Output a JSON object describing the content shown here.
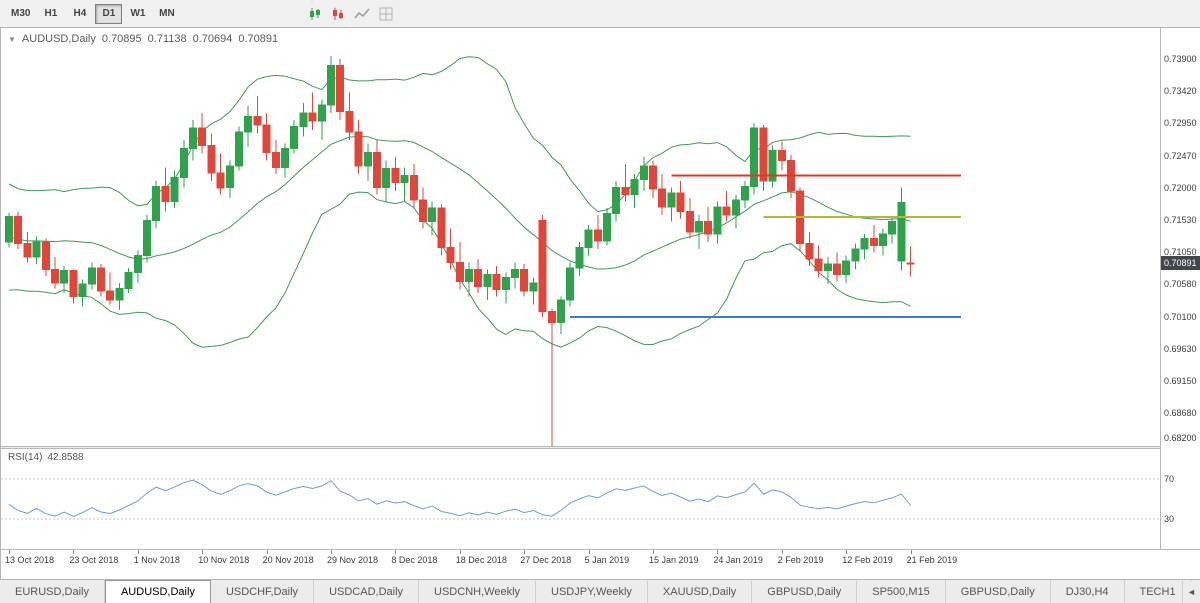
{
  "toolbar": {
    "timeframes": [
      "M30",
      "H1",
      "H4",
      "D1",
      "W1",
      "MN"
    ],
    "active_timeframe": "D1"
  },
  "icons": {
    "chart_dropdown": "▼",
    "tab_scroll_left": "◄"
  },
  "chart": {
    "title": "AUDUSD,Daily",
    "open": "0.70895",
    "high": "0.71138",
    "low": "0.70694",
    "close": "0.70891",
    "current_price": "0.70891"
  },
  "price_axis": {
    "labels": [
      "0.73900",
      "0.73420",
      "0.72950",
      "0.72470",
      "0.72000",
      "0.71530",
      "0.71050",
      "0.70580",
      "0.70100",
      "0.69630",
      "0.69150",
      "0.68680",
      "0.68200"
    ]
  },
  "rsi": {
    "label": "RSI(14)",
    "value": "42.8588",
    "levels": [
      "70",
      "30"
    ]
  },
  "date_axis": {
    "labels": [
      "13 Oct 2018",
      "23 Oct 2018",
      "1 Nov 2018",
      "10 Nov 2018",
      "20 Nov 2018",
      "29 Nov 2018",
      "8 Dec 2018",
      "18 Dec 2018",
      "27 Dec 2018",
      "5 Jan 2019",
      "15 Jan 2019",
      "24 Jan 2019",
      "2 Feb 2019",
      "12 Feb 2019",
      "21 Feb 2019"
    ]
  },
  "tabs": {
    "items": [
      {
        "label": "EURUSD,Daily",
        "active": false
      },
      {
        "label": "AUDUSD,Daily",
        "active": true
      },
      {
        "label": "USDCHF,Daily",
        "active": false
      },
      {
        "label": "USDCAD,Daily",
        "active": false
      },
      {
        "label": "USDCNH,Weekly",
        "active": false
      },
      {
        "label": "USDJPY,Weekly",
        "active": false
      },
      {
        "label": "XAUUSD,Daily",
        "active": false
      },
      {
        "label": "GBPUSD,Daily",
        "active": false
      },
      {
        "label": "SP500,M15",
        "active": false
      },
      {
        "label": "GBPUSD,Daily",
        "active": false
      },
      {
        "label": "DJ30,H4",
        "active": false
      },
      {
        "label": "TECH1",
        "active": false
      }
    ]
  },
  "chart_data": {
    "type": "candlestick",
    "title": "AUDUSD Daily with Bollinger Bands and RSI(14)",
    "symbol": "AUDUSD",
    "timeframe": "Daily",
    "y_range": [
      0.682,
      0.7435
    ],
    "x_labels": [
      "13 Oct 2018",
      "23 Oct 2018",
      "1 Nov 2018",
      "10 Nov 2018",
      "20 Nov 2018",
      "29 Nov 2018",
      "8 Dec 2018",
      "18 Dec 2018",
      "27 Dec 2018",
      "5 Jan 2019",
      "15 Jan 2019",
      "24 Jan 2019",
      "2 Feb 2019",
      "12 Feb 2019",
      "21 Feb 2019"
    ],
    "label_every": 7,
    "grid": false,
    "colors": {
      "up": "#2fa24c",
      "down": "#e0463a",
      "bands": "#3f9b55",
      "rsi": "#6a9fd8",
      "rsi_levels": "#c0c0c0"
    },
    "overlays": {
      "bollinger_period": 20,
      "bollinger_deviation": 2
    },
    "indicator": {
      "type": "RSI",
      "period": 14,
      "current": 42.8588,
      "levels": [
        70,
        30
      ]
    },
    "hlines": [
      {
        "name": "resistance-line-red",
        "color": "#e53528",
        "price": 0.7218,
        "from": 72,
        "to": 103.5,
        "width": 2
      },
      {
        "name": "mid-line-yellow",
        "color": "#b5b836",
        "price": 0.7157,
        "from": 82,
        "to": 103.5,
        "width": 2
      },
      {
        "name": "support-line-blue",
        "color": "#3e7dc4",
        "price": 0.701,
        "from": 61,
        "to": 103.5,
        "width": 2
      }
    ],
    "candles": [
      [
        0.712,
        0.7163,
        0.7112,
        0.7158
      ],
      [
        0.7158,
        0.7165,
        0.711,
        0.7118
      ],
      [
        0.7118,
        0.7135,
        0.709,
        0.7098
      ],
      [
        0.7098,
        0.7128,
        0.7088,
        0.712
      ],
      [
        0.712,
        0.7125,
        0.707,
        0.708
      ],
      [
        0.708,
        0.7098,
        0.7052,
        0.706
      ],
      [
        0.706,
        0.7085,
        0.7045,
        0.7078
      ],
      [
        0.7078,
        0.708,
        0.703,
        0.704
      ],
      [
        0.704,
        0.7065,
        0.7025,
        0.7058
      ],
      [
        0.7058,
        0.709,
        0.705,
        0.7082
      ],
      [
        0.7082,
        0.7088,
        0.704,
        0.7048
      ],
      [
        0.7048,
        0.7075,
        0.7028,
        0.7035
      ],
      [
        0.7035,
        0.706,
        0.702,
        0.7052
      ],
      [
        0.7052,
        0.7082,
        0.7045,
        0.7075
      ],
      [
        0.7075,
        0.7108,
        0.706,
        0.71
      ],
      [
        0.71,
        0.716,
        0.709,
        0.7152
      ],
      [
        0.7152,
        0.721,
        0.714,
        0.7202
      ],
      [
        0.7202,
        0.723,
        0.7165,
        0.718
      ],
      [
        0.718,
        0.7225,
        0.717,
        0.7215
      ],
      [
        0.7215,
        0.727,
        0.72,
        0.7258
      ],
      [
        0.7258,
        0.73,
        0.724,
        0.7288
      ],
      [
        0.7288,
        0.731,
        0.725,
        0.7262
      ],
      [
        0.7262,
        0.728,
        0.721,
        0.7222
      ],
      [
        0.7222,
        0.725,
        0.719,
        0.72
      ],
      [
        0.72,
        0.724,
        0.7185,
        0.7232
      ],
      [
        0.7232,
        0.729,
        0.7225,
        0.7282
      ],
      [
        0.7282,
        0.732,
        0.726,
        0.7305
      ],
      [
        0.7305,
        0.7335,
        0.728,
        0.7292
      ],
      [
        0.7292,
        0.731,
        0.724,
        0.7252
      ],
      [
        0.7252,
        0.727,
        0.722,
        0.723
      ],
      [
        0.723,
        0.7265,
        0.7215,
        0.7258
      ],
      [
        0.7258,
        0.73,
        0.725,
        0.729
      ],
      [
        0.729,
        0.7325,
        0.7275,
        0.731
      ],
      [
        0.731,
        0.734,
        0.7285,
        0.7298
      ],
      [
        0.7298,
        0.733,
        0.727,
        0.7322
      ],
      [
        0.7322,
        0.7394,
        0.731,
        0.738
      ],
      [
        0.738,
        0.739,
        0.73,
        0.7312
      ],
      [
        0.7312,
        0.734,
        0.727,
        0.7282
      ],
      [
        0.7282,
        0.73,
        0.722,
        0.7232
      ],
      [
        0.7232,
        0.7265,
        0.721,
        0.7252
      ],
      [
        0.7252,
        0.727,
        0.719,
        0.72
      ],
      [
        0.72,
        0.724,
        0.718,
        0.7228
      ],
      [
        0.7228,
        0.7245,
        0.7195,
        0.7208
      ],
      [
        0.7208,
        0.723,
        0.718,
        0.7218
      ],
      [
        0.7218,
        0.7235,
        0.717,
        0.7182
      ],
      [
        0.7182,
        0.72,
        0.714,
        0.715
      ],
      [
        0.715,
        0.718,
        0.713,
        0.717
      ],
      [
        0.717,
        0.7175,
        0.71,
        0.7112
      ],
      [
        0.7112,
        0.714,
        0.708,
        0.709
      ],
      [
        0.709,
        0.712,
        0.705,
        0.7062
      ],
      [
        0.7062,
        0.709,
        0.704,
        0.708
      ],
      [
        0.708,
        0.7095,
        0.7045,
        0.7055
      ],
      [
        0.7055,
        0.708,
        0.7035,
        0.7072
      ],
      [
        0.7072,
        0.7085,
        0.704,
        0.705
      ],
      [
        0.705,
        0.7075,
        0.703,
        0.7068
      ],
      [
        0.7068,
        0.709,
        0.7052,
        0.708
      ],
      [
        0.708,
        0.7088,
        0.704,
        0.7048
      ],
      [
        0.7048,
        0.7068,
        0.7028,
        0.706
      ],
      [
        0.7152,
        0.716,
        0.701,
        0.7018
      ],
      [
        0.7018,
        0.7022,
        0.682,
        0.7002
      ],
      [
        0.7002,
        0.704,
        0.6985,
        0.7035
      ],
      [
        0.7035,
        0.709,
        0.7025,
        0.7082
      ],
      [
        0.7082,
        0.712,
        0.707,
        0.7112
      ],
      [
        0.7112,
        0.7145,
        0.71,
        0.7138
      ],
      [
        0.7138,
        0.716,
        0.711,
        0.7122
      ],
      [
        0.7122,
        0.717,
        0.7115,
        0.7162
      ],
      [
        0.7162,
        0.721,
        0.715,
        0.72
      ],
      [
        0.72,
        0.7235,
        0.718,
        0.719
      ],
      [
        0.719,
        0.722,
        0.717,
        0.7212
      ],
      [
        0.7212,
        0.7245,
        0.7195,
        0.7232
      ],
      [
        0.7232,
        0.724,
        0.7185,
        0.7198
      ],
      [
        0.7198,
        0.722,
        0.716,
        0.7172
      ],
      [
        0.7172,
        0.72,
        0.715,
        0.7192
      ],
      [
        0.7192,
        0.721,
        0.7155,
        0.7165
      ],
      [
        0.7165,
        0.7185,
        0.7125,
        0.7135
      ],
      [
        0.7135,
        0.716,
        0.711,
        0.715
      ],
      [
        0.715,
        0.7172,
        0.712,
        0.7132
      ],
      [
        0.7132,
        0.718,
        0.7118,
        0.7172
      ],
      [
        0.7172,
        0.7195,
        0.715,
        0.716
      ],
      [
        0.716,
        0.719,
        0.714,
        0.7182
      ],
      [
        0.7182,
        0.721,
        0.717,
        0.7202
      ],
      [
        0.7202,
        0.7295,
        0.719,
        0.7288
      ],
      [
        0.7288,
        0.7292,
        0.7195,
        0.721
      ],
      [
        0.721,
        0.7262,
        0.72,
        0.7255
      ],
      [
        0.7255,
        0.7268,
        0.7225,
        0.724
      ],
      [
        0.724,
        0.7248,
        0.7185,
        0.7195
      ],
      [
        0.7195,
        0.72,
        0.7108,
        0.7118
      ],
      [
        0.7118,
        0.7135,
        0.7085,
        0.7095
      ],
      [
        0.7095,
        0.7115,
        0.7068,
        0.7078
      ],
      [
        0.7078,
        0.7098,
        0.7058,
        0.7088
      ],
      [
        0.7088,
        0.7105,
        0.7062,
        0.7072
      ],
      [
        0.7072,
        0.71,
        0.706,
        0.7092
      ],
      [
        0.7092,
        0.7118,
        0.708,
        0.711
      ],
      [
        0.711,
        0.7132,
        0.7095,
        0.7125
      ],
      [
        0.7125,
        0.7145,
        0.7105,
        0.7115
      ],
      [
        0.7115,
        0.714,
        0.71,
        0.7132
      ],
      [
        0.7132,
        0.7158,
        0.7118,
        0.715
      ],
      [
        0.7092,
        0.72,
        0.7078,
        0.7178
      ],
      [
        0.70895,
        0.71138,
        0.70694,
        0.70891
      ]
    ]
  }
}
